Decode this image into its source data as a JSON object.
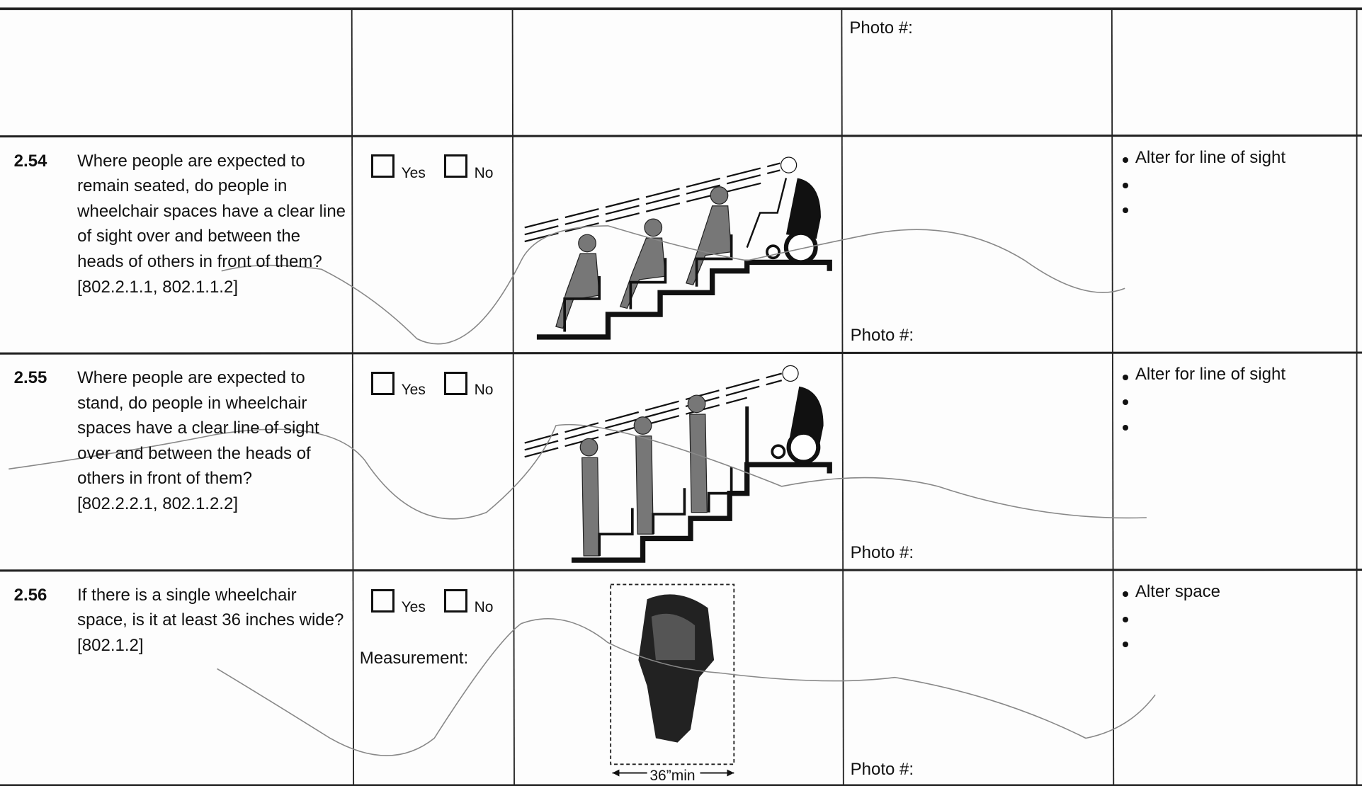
{
  "top_row": {
    "photo_label": "Photo #:"
  },
  "rows": [
    {
      "number": "2.54",
      "question": "Where people are expected to remain seated, do people in wheelchair spaces have a clear line of sight over and between the heads of others in front of them?",
      "reference": "[802.2.1.1, 802.1.1.2]",
      "options": [
        "Yes",
        "No"
      ],
      "photo_label": "Photo #:",
      "actions": [
        "Alter for line of sight"
      ]
    },
    {
      "number": "2.55",
      "question": "Where people are expected to stand, do people in wheelchair spaces have a clear line of sight over and between the heads of others in front of them?",
      "reference": "[802.2.2.1, 802.1.2.2]",
      "options": [
        "Yes",
        "No"
      ],
      "photo_label": "Photo #:",
      "actions": [
        "Alter for line of sight"
      ]
    },
    {
      "number": "2.56",
      "question": "If there is a single wheelchair space, is it at least 36 inches wide?",
      "reference": "[802.1.2]",
      "options": [
        "Yes",
        "No"
      ],
      "measurement_label": "Measurement:",
      "figure_label": "36”min",
      "photo_label": "Photo #:",
      "actions": [
        "Alter space"
      ]
    }
  ]
}
